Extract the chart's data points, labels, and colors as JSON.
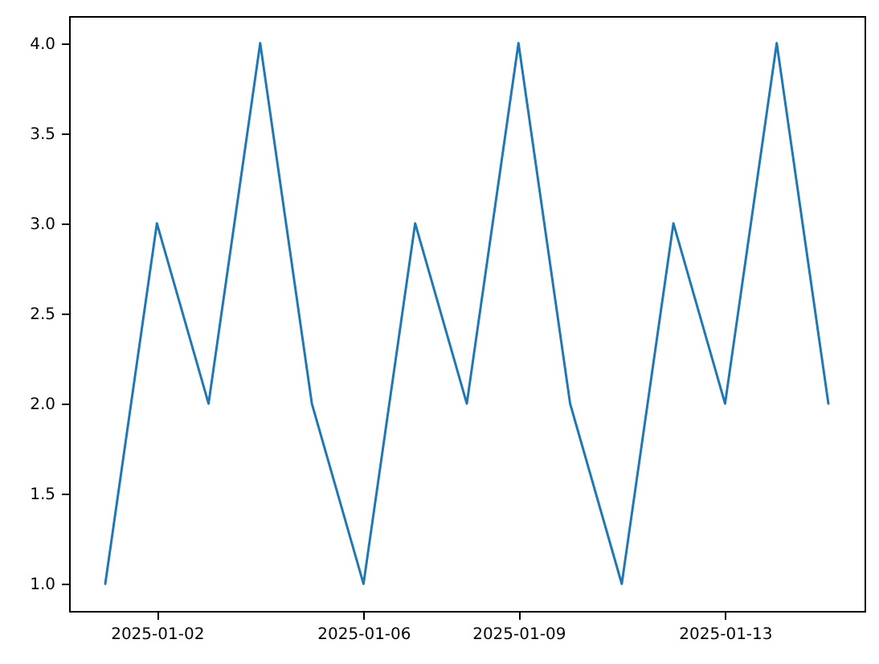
{
  "chart_data": {
    "type": "line",
    "x": [
      "2025-01-01",
      "2025-01-02",
      "2025-01-03",
      "2025-01-04",
      "2025-01-05",
      "2025-01-06",
      "2025-01-07",
      "2025-01-08",
      "2025-01-09",
      "2025-01-10",
      "2025-01-11",
      "2025-01-12",
      "2025-01-13",
      "2025-01-14",
      "2025-01-15"
    ],
    "series": [
      {
        "color": "#1f77b4",
        "values": [
          1,
          3,
          2,
          4,
          2,
          1,
          3,
          2,
          4,
          2,
          1,
          3,
          2,
          4,
          2
        ]
      }
    ],
    "xlim": [
      "2024-12-31T07:12",
      "2025-01-15T16:48"
    ],
    "xticks": [
      {
        "value": "2025-01-02",
        "label": "2025-01-02"
      },
      {
        "value": "2025-01-06",
        "label": "2025-01-06"
      },
      {
        "value": "2025-01-09",
        "label": "2025-01-09"
      },
      {
        "value": "2025-01-13",
        "label": "2025-01-13"
      }
    ],
    "ylim": [
      0.85,
      4.15
    ],
    "yticks": [
      {
        "value": 1,
        "label": "1.0"
      },
      {
        "value": 1.5,
        "label": "1.5"
      },
      {
        "value": 2,
        "label": "2.0"
      },
      {
        "value": 2.5,
        "label": "2.5"
      },
      {
        "value": 3,
        "label": "3.0"
      },
      {
        "value": 3.5,
        "label": "3.5"
      },
      {
        "value": 4,
        "label": "4.0"
      }
    ],
    "grid": false,
    "marker": "none",
    "line_style": "solid"
  }
}
